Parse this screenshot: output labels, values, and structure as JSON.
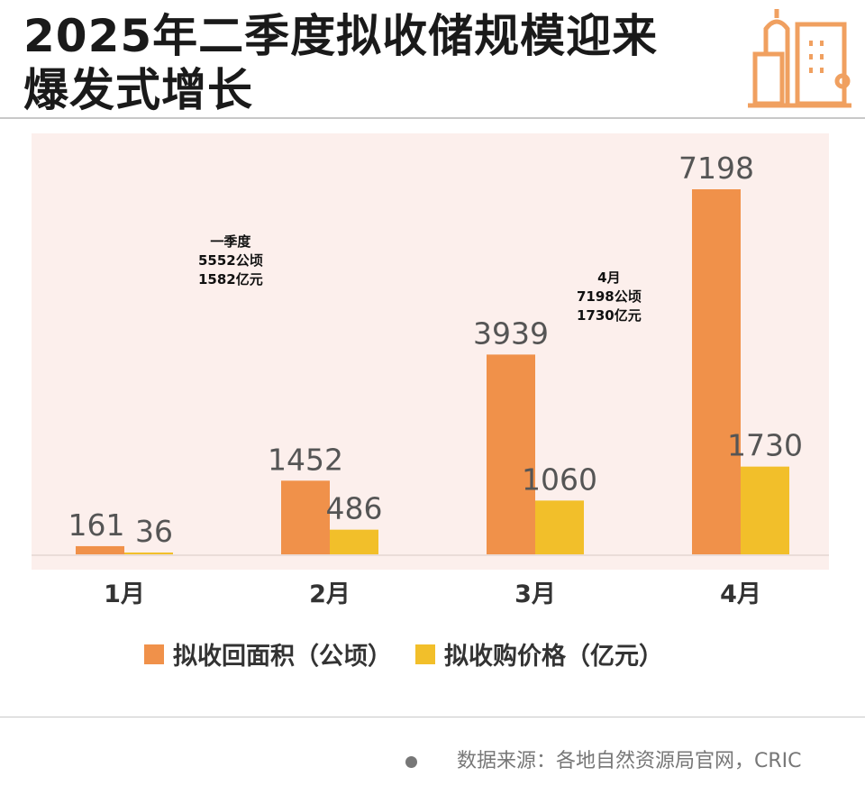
{
  "title": {
    "line1": "2025年二季度拟收储规模迎来",
    "line2": "爆发式增长"
  },
  "icon": "city-buildings-icon",
  "annotations": {
    "q1": [
      "一季度",
      "5552公顷",
      "1582亿元"
    ],
    "apr": [
      "4月",
      "7198公顷",
      "1730亿元"
    ]
  },
  "source": "数据来源：各地自然资源局官网，CRIC",
  "colors": {
    "area": "#f0914a",
    "price": "#f2bf2a",
    "background": "#fcefec"
  },
  "chart_data": {
    "type": "bar",
    "categories": [
      "1月",
      "2月",
      "3月",
      "4月"
    ],
    "series": [
      {
        "name": "拟收回面积（公顷）",
        "values": [
          161,
          1452,
          3939,
          7198
        ]
      },
      {
        "name": "拟收购价格（亿元）",
        "values": [
          36,
          486,
          1060,
          1730
        ]
      }
    ],
    "legend": "bottom",
    "grid": false
  }
}
